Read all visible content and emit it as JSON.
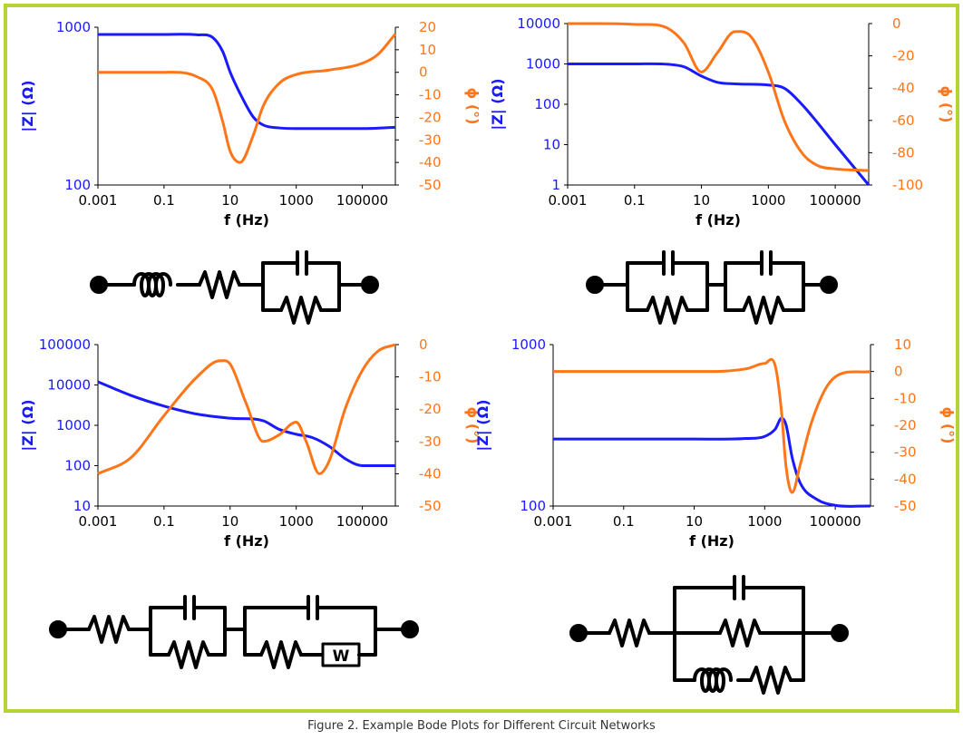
{
  "caption": "Figure 2. Example Bode Plots for Different Circuit Networks",
  "colors": {
    "frame": "#b5d334",
    "magnitude": "#1a1aff",
    "phase": "#ff7518",
    "axis": "#000000",
    "circuit": "#000000"
  },
  "chart_data": [
    {
      "type": "line",
      "xlabel": "f (Hz)",
      "ylabel": "|Z| (Ω)",
      "y2label": "ϕ (°)",
      "xscale": "log",
      "xlim": [
        0.001,
        1000000
      ],
      "xticks": [
        "0.001",
        "0.1",
        "10",
        "1000",
        "100000"
      ],
      "yscale": "log",
      "ylim": [
        100,
        1000
      ],
      "yticks": [
        "100",
        "1000"
      ],
      "y2lim": [
        -50,
        20
      ],
      "y2ticks": [
        "-50",
        "-40",
        "-30",
        "-20",
        "-10",
        "0",
        "10",
        "20"
      ],
      "grid": false,
      "series": [
        {
          "axis": "left",
          "color": "magnitude",
          "x": [
            0.001,
            0.1,
            1,
            3,
            6,
            10,
            20,
            50,
            100,
            300,
            1000,
            10000,
            100000,
            1000000
          ],
          "y": [
            900,
            900,
            895,
            860,
            700,
            520,
            380,
            270,
            240,
            230,
            228,
            228,
            228,
            232
          ]
        },
        {
          "axis": "right",
          "color": "phase",
          "x": [
            0.001,
            0.1,
            1,
            3,
            6,
            10,
            20,
            50,
            100,
            300,
            1000,
            10000,
            100000,
            300000,
            1000000
          ],
          "y": [
            0,
            0,
            -2,
            -8,
            -22,
            -35,
            -40,
            -28,
            -15,
            -5,
            -1,
            1,
            4,
            8,
            17
          ]
        }
      ]
    },
    {
      "type": "line",
      "xlabel": "f (Hz)",
      "ylabel": "|Z| (Ω)",
      "y2label": "ϕ (°)",
      "xscale": "log",
      "xlim": [
        0.001,
        1000000
      ],
      "xticks": [
        "0.001",
        "0.1",
        "10",
        "1000",
        "100000"
      ],
      "yscale": "log",
      "ylim": [
        1,
        10000
      ],
      "yticks": [
        "1",
        "10",
        "100",
        "1000",
        "10000"
      ],
      "y2lim": [
        -100,
        0
      ],
      "y2ticks": [
        "-100",
        "-80",
        "-60",
        "-40",
        "-20",
        "0"
      ],
      "grid": false,
      "series": [
        {
          "axis": "left",
          "color": "magnitude",
          "x": [
            0.001,
            0.1,
            1,
            3,
            10,
            30,
            100,
            1000,
            3000,
            10000,
            100000,
            1000000
          ],
          "y": [
            1000,
            1000,
            980,
            850,
            500,
            350,
            320,
            300,
            250,
            100,
            10,
            1
          ]
        },
        {
          "axis": "right",
          "color": "phase",
          "x": [
            0.001,
            0.1,
            1,
            3,
            10,
            30,
            100,
            300,
            1000,
            3000,
            10000,
            30000,
            100000,
            1000000
          ],
          "y": [
            0,
            -0.5,
            -3,
            -12,
            -30,
            -18,
            -5,
            -8,
            -30,
            -60,
            -80,
            -88,
            -90,
            -91
          ]
        }
      ]
    },
    {
      "type": "line",
      "xlabel": "f (Hz)",
      "ylabel": "|Z| (Ω)",
      "y2label": "ϕ (°)",
      "xscale": "log",
      "xlim": [
        0.001,
        1000000
      ],
      "xticks": [
        "0.001",
        "0.1",
        "10",
        "1000",
        "100000"
      ],
      "yscale": "log",
      "ylim": [
        10,
        100000
      ],
      "yticks": [
        "10",
        "100",
        "1000",
        "10000",
        "100000"
      ],
      "y2lim": [
        -50,
        0
      ],
      "y2ticks": [
        "-50",
        "-40",
        "-30",
        "-20",
        "-10",
        "0"
      ],
      "grid": false,
      "series": [
        {
          "axis": "left",
          "color": "magnitude",
          "x": [
            0.001,
            0.01,
            0.1,
            1,
            10,
            100,
            300,
            1000,
            3000,
            10000,
            30000,
            100000,
            1000000
          ],
          "y": [
            12000,
            5500,
            3000,
            1900,
            1500,
            1300,
            800,
            600,
            500,
            300,
            150,
            100,
            100
          ]
        },
        {
          "axis": "right",
          "color": "phase",
          "x": [
            0.001,
            0.01,
            0.1,
            1,
            5,
            10,
            30,
            100,
            300,
            1000,
            2000,
            5000,
            10000,
            30000,
            100000,
            300000,
            1000000
          ],
          "y": [
            -40,
            -35,
            -22,
            -10,
            -5,
            -6,
            -18,
            -30,
            -28,
            -24,
            -30,
            -40,
            -36,
            -20,
            -8,
            -2,
            0
          ]
        }
      ]
    },
    {
      "type": "line",
      "xlabel": "f (Hz)",
      "ylabel": "|Z| (Ω)",
      "y2label": "ϕ (°)",
      "xscale": "log",
      "xlim": [
        0.001,
        1000000
      ],
      "xticks": [
        "0.001",
        "0.1",
        "10",
        "1000",
        "100000"
      ],
      "yscale": "log",
      "ylim": [
        100,
        1000
      ],
      "yticks": [
        "100",
        "1000"
      ],
      "y2lim": [
        -50,
        10
      ],
      "y2ticks": [
        "-50",
        "-40",
        "-30",
        "-20",
        "-10",
        "0",
        "10"
      ],
      "grid": false,
      "series": [
        {
          "axis": "left",
          "color": "magnitude",
          "x": [
            0.001,
            0.1,
            10,
            300,
            1000,
            2000,
            3000,
            4000,
            6000,
            10000,
            30000,
            100000,
            1000000
          ],
          "y": [
            260,
            260,
            260,
            262,
            270,
            300,
            350,
            320,
            200,
            140,
            110,
            101,
            100
          ]
        },
        {
          "axis": "right",
          "color": "phase",
          "x": [
            0.001,
            0.1,
            10,
            300,
            1000,
            2000,
            3000,
            4000,
            6000,
            10000,
            20000,
            50000,
            100000,
            1000000
          ],
          "y": [
            0,
            0,
            0,
            1,
            3,
            2,
            -15,
            -35,
            -45,
            -35,
            -20,
            -7,
            -2,
            0
          ]
        }
      ]
    }
  ]
}
